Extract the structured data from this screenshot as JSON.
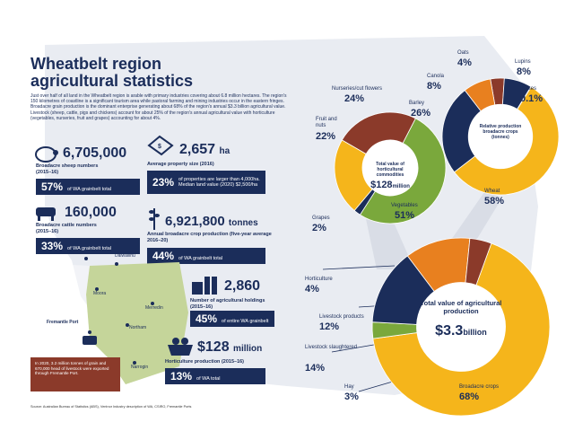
{
  "title": "Wheatbelt region agricultural statistics",
  "intro": "Just over half of all land in the Wheatbelt region is arable with primary industries covering about 6.8 million hectares. The region's 150 kilometres of coastline is a significant tourism area while pastoral farming and mining industries occur in the eastern fringes. Broadacre grain production is the dominant enterprise generating about 68% of the region's annual $3.3 billion agricultural value. Livestock (sheep, cattle, pigs and chickens) account for about 25% of the region's annual agricultural value with horticulture (vegetables, nurseries, fruit and grapes) accounting for about 4%.",
  "stats": {
    "sheep": {
      "value": "6,705,000",
      "label": "Broadacre sheep numbers",
      "period": "(2015–16)",
      "pct": "57%",
      "pct_label": "of WA grainbelt total"
    },
    "cattle": {
      "value": "160,000",
      "label": "Broadacre cattle numbers",
      "period": "(2015–16)",
      "pct": "33%",
      "pct_label": "of WA grainbelt total"
    },
    "property": {
      "value": "2,657",
      "unit": "ha",
      "label": "Average property size (2016)",
      "pct": "23%",
      "pct_label": "of properties are larger than 4,000ha. Median land value (2020) $2,500/ha"
    },
    "crop": {
      "value": "6,921,800",
      "unit": "tonnes",
      "label": "Annual broadacre crop production (five-year average 2016–20)",
      "pct": "44%",
      "pct_label": "of WA grainbelt total"
    },
    "holdings": {
      "value": "2,860",
      "label": "Number of agricultural holdings (2015–16)",
      "pct": "45%",
      "pct_label": "of entire WA grainbelt"
    },
    "horticulture": {
      "value": "$128",
      "unit": "million",
      "label": "Horticulture production (2015–16)",
      "pct": "13%",
      "pct_label": "of WA total"
    }
  },
  "map": {
    "towns": [
      "Jurien Bay",
      "Dalwallinu",
      "Moora",
      "Merredin",
      "Fremantle Port",
      "Northam",
      "Narrogin"
    ],
    "note": "In 2020, 3.2 million tonnes of grain and 670,000 head of livestock were exported through Fremantle Port."
  },
  "main_chart": {
    "title": "Total value of agricultural production",
    "total": "$3.3",
    "total_unit": "billion",
    "segments": [
      {
        "label": "Broadacre crops",
        "value": "68%",
        "pct": 68,
        "color": "#f5b51b"
      },
      {
        "label": "Hay",
        "value": "3%",
        "pct": 3,
        "color": "#7aa83c"
      },
      {
        "label": "Livestock slaughtered",
        "value": "14%",
        "pct": 14,
        "color": "#1b2d5a"
      },
      {
        "label": "Livestock products",
        "value": "12%",
        "pct": 12,
        "color": "#e8801f"
      },
      {
        "label": "Horticulture",
        "value": "4%",
        "pct": 4,
        "color": "#8b3a2a"
      }
    ]
  },
  "horti_chart": {
    "title": "Total value of horticultural commodities",
    "total": "$128",
    "total_unit": "million",
    "segments": [
      {
        "label": "Nurseries/cut flowers",
        "value": "24%",
        "pct": 24,
        "color": "#8b3a2a"
      },
      {
        "label": "Vegetables",
        "value": "51%",
        "pct": 51,
        "color": "#7aa83c"
      },
      {
        "label": "Grapes",
        "value": "2%",
        "pct": 2,
        "color": "#1b2d5a"
      },
      {
        "label": "Fruit and nuts",
        "value": "22%",
        "pct": 22,
        "color": "#f5b51b"
      }
    ]
  },
  "crops_chart": {
    "title": "Relative production broadacre crops (tonnes)",
    "segments": [
      {
        "label": "Oats",
        "value": "4%",
        "pct": 4,
        "color": "#8b3a2a"
      },
      {
        "label": "Lupins",
        "value": "8%",
        "pct": 8,
        "color": "#1b2d5a"
      },
      {
        "label": "Pulses",
        "value": "0.1%",
        "pct": 0.1,
        "color": "#7aa83c"
      },
      {
        "label": "Wheat",
        "value": "58%",
        "pct": 58,
        "color": "#f5b51b"
      },
      {
        "label": "Barley",
        "value": "26%",
        "pct": 26,
        "color": "#1b2d5a"
      },
      {
        "label": "Canola",
        "value": "8%",
        "pct": 8,
        "color": "#e8801f"
      }
    ]
  },
  "source": "Source: Australian Bureau of Statistics (ABS), Ventnor Industry description of WA, CSIRO, Fremantle Ports"
}
